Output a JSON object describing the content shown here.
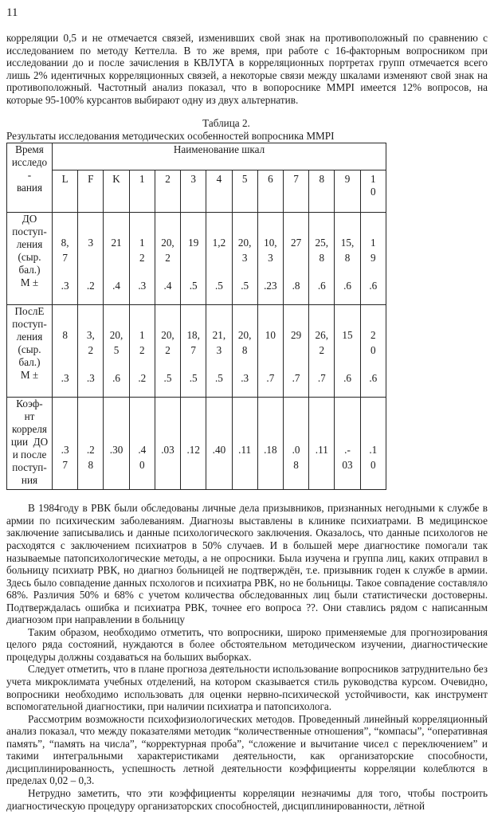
{
  "page": {
    "number": "11",
    "background_color": "#ffffff",
    "text_color": "#1b1b1b"
  },
  "paragraphs_before_table": [
    {
      "indent": false,
      "text": "корреляции 0,5 и не отмечается связей, изменивших свой знак на противоположный по сравнению с исследованием по методу Кеттелла. В то же время, при работе с 16-факторным вопросником при исследовании до и после зачисления в КВЛУГА в корреляционных портретах групп отмечается всего лишь 2% идентичных корреляционных связей, а некоторые связи между шкалами изменяют свой знак на противоположный. Частотный анализ показал, что в вопороснике MMPI имеется 12% вопросов, на которые 95-100% курсантов выбирают одну из двух альтернатив."
    }
  ],
  "table": {
    "title": "Таблица 2.",
    "caption": "Результаты исследования методических особенностей вопросника MMPI",
    "corner_header_lines": [
      "Время",
      "исследо",
      "-",
      "вания"
    ],
    "scales_header": "Наименование  шкал",
    "scale_columns": [
      [
        "L"
      ],
      [
        "F"
      ],
      [
        "K"
      ],
      [
        "1"
      ],
      [
        "2"
      ],
      [
        "3"
      ],
      [
        "4"
      ],
      [
        "5"
      ],
      [
        "6"
      ],
      [
        "7"
      ],
      [
        "8"
      ],
      [
        "9"
      ],
      [
        "1",
        "0"
      ]
    ],
    "rows": [
      {
        "label_lines": [
          "ДО",
          "поступ-",
          "ления",
          "(сыр.",
          "бал.)",
          "М ±"
        ],
        "cells": [
          {
            "main": [
              "8,",
              "7"
            ],
            "bottom": ".3"
          },
          {
            "main": [
              "3"
            ],
            "bottom": ".2"
          },
          {
            "main": [
              "21"
            ],
            "bottom": ".4"
          },
          {
            "main": [
              "1",
              "2"
            ],
            "bottom": ".3"
          },
          {
            "main": [
              "20,",
              "2"
            ],
            "bottom": ".4"
          },
          {
            "main": [
              "19"
            ],
            "bottom": ".5"
          },
          {
            "main": [
              "1,2"
            ],
            "bottom": ".5"
          },
          {
            "main": [
              "20,",
              "3"
            ],
            "bottom": ".5"
          },
          {
            "main": [
              "10,",
              "3"
            ],
            "bottom": ".23"
          },
          {
            "main": [
              "27"
            ],
            "bottom": ".8"
          },
          {
            "main": [
              "25,",
              "8"
            ],
            "bottom": ".6"
          },
          {
            "main": [
              "15,",
              "8"
            ],
            "bottom": ".6"
          },
          {
            "main": [
              "1",
              "9"
            ],
            "bottom": ".6"
          }
        ]
      },
      {
        "label_lines": [
          "ПослЕ",
          "поступ-",
          "ления",
          "(сыр.",
          "бал.)",
          "М ±"
        ],
        "cells": [
          {
            "main": [
              "8"
            ],
            "bottom": ".3"
          },
          {
            "main": [
              "3,",
              "2"
            ],
            "bottom": ".3"
          },
          {
            "main": [
              "20,",
              "5"
            ],
            "bottom": ".6"
          },
          {
            "main": [
              "1",
              "2"
            ],
            "bottom": ".2"
          },
          {
            "main": [
              "20,",
              "2"
            ],
            "bottom": ".5"
          },
          {
            "main": [
              "18,",
              "7"
            ],
            "bottom": ".5"
          },
          {
            "main": [
              "21,",
              "3"
            ],
            "bottom": ".5"
          },
          {
            "main": [
              "20,",
              "8"
            ],
            "bottom": ".3"
          },
          {
            "main": [
              "10"
            ],
            "bottom": ".7"
          },
          {
            "main": [
              "29"
            ],
            "bottom": ".7"
          },
          {
            "main": [
              "26,",
              "2"
            ],
            "bottom": ".7"
          },
          {
            "main": [
              "15"
            ],
            "bottom": ".6"
          },
          {
            "main": [
              "2",
              "0"
            ],
            "bottom": ".6"
          }
        ]
      },
      {
        "label_lines": [
          "Коэф-",
          "нт",
          "корреля",
          "ции  ДО",
          "и после",
          "поступ-",
          "ния"
        ],
        "cells": [
          {
            "main": [
              ".3",
              "7"
            ]
          },
          {
            "main": [
              ".2",
              "8"
            ]
          },
          {
            "main": [
              ".30"
            ]
          },
          {
            "main": [
              ".4",
              "0"
            ]
          },
          {
            "main": [
              ".03"
            ]
          },
          {
            "main": [
              ".12"
            ]
          },
          {
            "main": [
              ".40"
            ]
          },
          {
            "main": [
              ".11"
            ]
          },
          {
            "main": [
              ".18"
            ]
          },
          {
            "main": [
              ".0",
              "8"
            ]
          },
          {
            "main": [
              ".11"
            ]
          },
          {
            "main": [
              ".-",
              "03"
            ]
          },
          {
            "main": [
              ".1",
              "0"
            ]
          }
        ]
      }
    ]
  },
  "paragraphs_after_table": [
    {
      "indent": true,
      "text": "В 1984году в РВК были обследованы личные дела призывников, признанных негодными к службе в армии по психическим заболеваниям. Диагнозы выставлены в клинике психиатрами. В медицинское заключение записывались и данные психологического заключения. Оказалось, что данные психологов не расходятся с заключением психиатров в 50% случаев. И в большей мере диагностике помогали так называемые патопсихологические методы, а не опросники. Была изучена и группа лиц, каких отправил в больницу психиатр РВК, но диагноз больницей не подтверждён, т.е. призывник годен к службе в армии. Здесь было совпадение данных псхологов и психиатра РВК, но не больницы. Такое совпадение составляло 68%. Различия 50% и 68% с учетом количества обследованных лиц были статистически достоверны. Подтверждалась ошибка и психиатра РВК, точнее его вопроса ??. Они ставлись рядом с написанным диагнозом при направлении в больницу"
    },
    {
      "indent": true,
      "text": "Таким образом, необходимо отметить, что вопросники, широко применяемые для прогнозирования целого ряда состояний, нуждаются в более обстоятельном методическом изучении, диагностические процедуры должны создаваться на больших выборках."
    },
    {
      "indent": true,
      "text": "Следует отметить, что в плане прогноза деятельности использование вопросников затруднительно без учета микроклимата учебных отделений, на котором сказывается стиль руководства курсом. Очевидно, вопросники необходимо использовать для оценки нервно-психической устойчивости, как инструмент вспомогательной диагностики, при наличии психиатра и патопсихолога."
    },
    {
      "indent": true,
      "text": "Рассмотрим возможности психофизиологических методов. Проведенный линейный корреляционный анализ показал, что между показателями методик “количественные отношения”, “компасы”, “оперативная память”, “память на числа”, “корректурная проба”, “сложение и вычитание чисел с переключением” и такими интегральными характеристиками деятельности, как организаторские способности, дисциплинированность, успешность летной деятельности коэффициенты корреляции колеблются в пределах 0,02 – 0,3."
    },
    {
      "indent": true,
      "text": "Нетрудно заметить, что эти коэффициенты  корреляции незначимы для того, чтобы построить диагностическую процедуру организаторских способностей, дисциплинированности, лётной"
    }
  ]
}
